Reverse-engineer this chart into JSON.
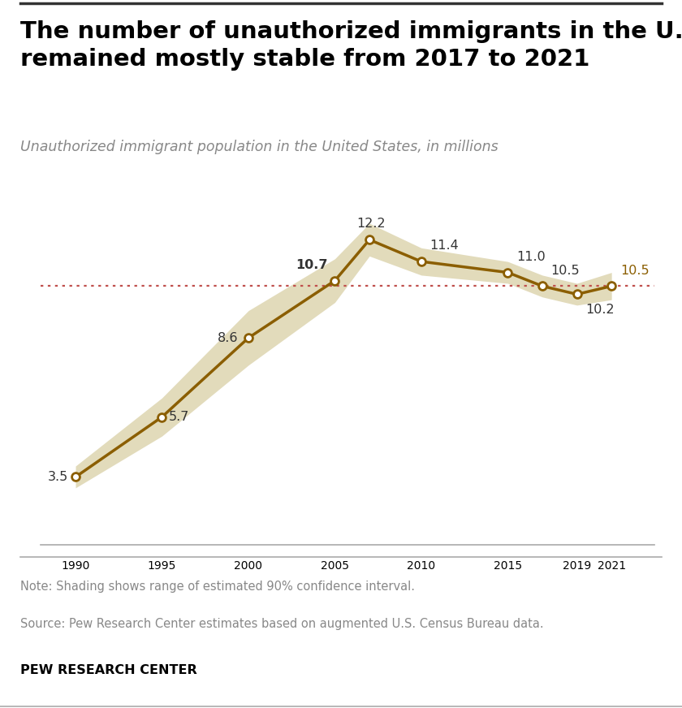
{
  "title_line1": "The number of unauthorized immigrants in the U.S.",
  "title_line2": "remained mostly stable from 2017 to 2021",
  "subtitle": "Unauthorized immigrant population in the United States, in millions",
  "note": "Note: Shading shows range of estimated 90% confidence interval.",
  "source": "Source: Pew Research Center estimates based on augmented U.S. Census Bureau data.",
  "footer": "PEW RESEARCH CENTER",
  "line_color": "#8B5E00",
  "ci_color": "#DDD5B0",
  "dotted_line_color": "#C0504D",
  "x_values": [
    1990,
    1995,
    2000,
    2005,
    2007,
    2010,
    2015,
    2017,
    2019,
    2021
  ],
  "y_values": [
    3.5,
    5.7,
    8.6,
    10.7,
    12.2,
    11.4,
    11.0,
    10.5,
    10.2,
    10.5
  ],
  "ci_upper": [
    3.9,
    6.4,
    9.6,
    11.5,
    12.8,
    11.9,
    11.4,
    10.9,
    10.6,
    11.0
  ],
  "ci_lower": [
    3.1,
    5.0,
    7.6,
    9.9,
    11.6,
    10.9,
    10.6,
    10.1,
    9.8,
    10.0
  ],
  "labels": [
    "3.5",
    "5.7",
    "8.6",
    "10.7",
    "12.2",
    "11.4",
    "11.0",
    "10.5",
    "10.2",
    "10.5"
  ],
  "label_bold": [
    false,
    false,
    false,
    true,
    false,
    false,
    false,
    false,
    false,
    false
  ],
  "label_color": [
    "#333333",
    "#333333",
    "#333333",
    "#333333",
    "#333333",
    "#333333",
    "#333333",
    "#333333",
    "#333333",
    "#8B5E00"
  ],
  "label_ha": [
    "right",
    "left",
    "right",
    "right",
    "center",
    "left",
    "left",
    "left",
    "left",
    "left"
  ],
  "label_va": [
    "center",
    "center",
    "center",
    "bottom",
    "bottom",
    "bottom",
    "bottom",
    "bottom",
    "top",
    "bottom"
  ],
  "label_offsets_x": [
    -0.4,
    0.4,
    -0.6,
    -0.4,
    0.1,
    0.5,
    0.5,
    0.5,
    0.5,
    0.5
  ],
  "label_offsets_y": [
    0.0,
    0.0,
    0.0,
    0.35,
    0.35,
    0.35,
    0.35,
    0.35,
    -0.35,
    0.35
  ],
  "dotted_y": 10.5,
  "xtick_labels": [
    "1990",
    "1995",
    "2000",
    "2005",
    "2010",
    "2015",
    "2019",
    "2021"
  ],
  "xtick_positions": [
    1990,
    1995,
    2000,
    2005,
    2010,
    2015,
    2019,
    2021
  ],
  "ylim": [
    1.0,
    14.5
  ],
  "xlim": [
    1988.0,
    2023.5
  ]
}
